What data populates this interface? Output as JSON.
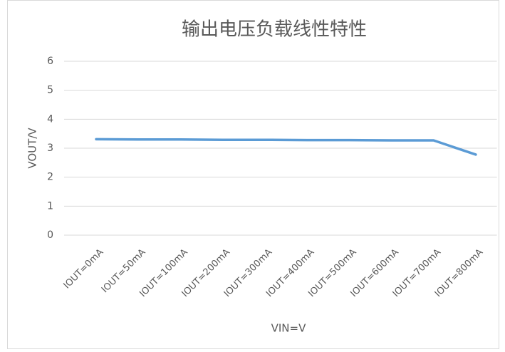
{
  "chart_data": {
    "type": "line",
    "title": "输出电压负载线性特性",
    "x_label": "VIN=V",
    "y_label": "VOUT/V",
    "categories": [
      "IOUT=0mA",
      "IOUT=50mA",
      "IOUT=100mA",
      "IOUT=200mA",
      "IOUT=300mA",
      "IOUT=400mA",
      "IOUT=500mA",
      "IOUT=600mA",
      "IOUT=700mA",
      "IOUT=800mA"
    ],
    "series": [
      {
        "name": "VOUT",
        "color": "#5b9bd5",
        "values": [
          3.31,
          3.3,
          3.3,
          3.29,
          3.29,
          3.28,
          3.28,
          3.27,
          3.27,
          2.78
        ]
      }
    ],
    "ylim": [
      0,
      6
    ],
    "yticks": [
      0,
      1,
      2,
      3,
      4,
      5,
      6
    ],
    "grid": true
  }
}
